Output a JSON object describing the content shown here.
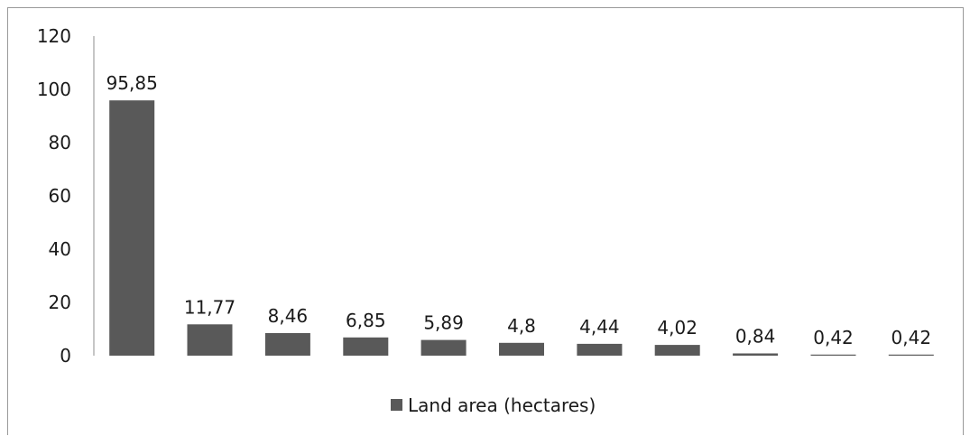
{
  "chart_data": {
    "type": "bar",
    "categories": [
      "",
      "",
      "",
      "",
      "",
      "",
      "",
      "",
      "",
      "",
      ""
    ],
    "series": [
      {
        "name": "Land area (hectares)",
        "values": [
          95.85,
          11.77,
          8.46,
          6.85,
          5.89,
          4.8,
          4.44,
          4.02,
          0.84,
          0.42,
          0.42
        ],
        "data_labels": [
          "95,85",
          "11,77",
          "8,46",
          "6,85",
          "5,89",
          "4,8",
          "4,44",
          "4,02",
          "0,84",
          "0,42",
          "0,42"
        ]
      }
    ],
    "yticks": [
      "0",
      "20",
      "40",
      "60",
      "80",
      "100",
      "120"
    ],
    "ylim": [
      0,
      120
    ],
    "grid": false,
    "legend_position": "bottom",
    "bar_color": "#595959",
    "axis_color": "#8c8c8c"
  }
}
